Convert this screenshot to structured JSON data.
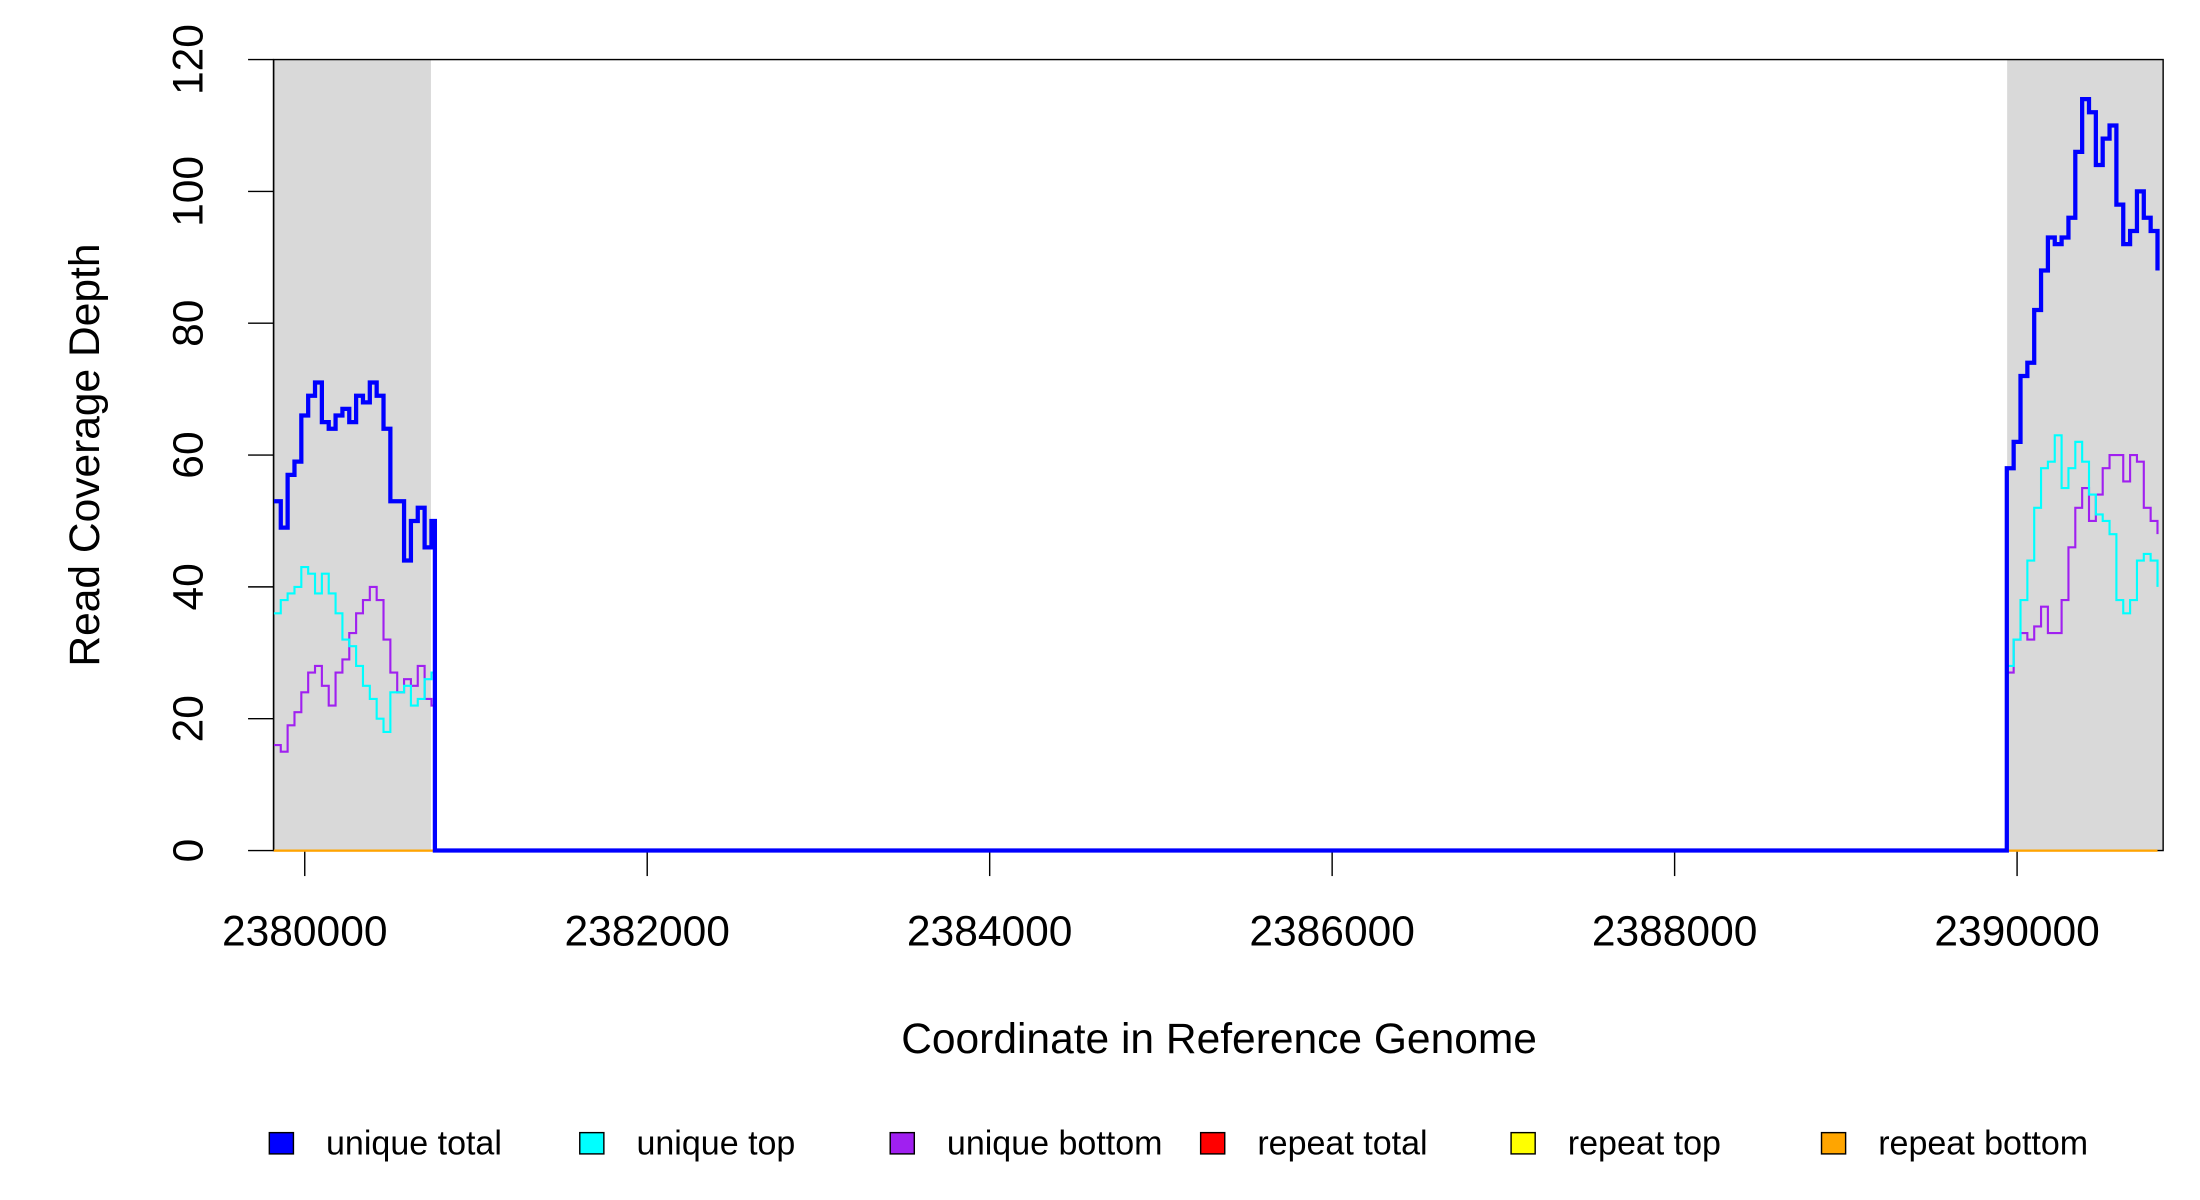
{
  "chart_data": {
    "type": "line",
    "title_x": "Coordinate in Reference Genome",
    "title_y": "Read Coverage Depth",
    "xlim": [
      2379818,
      2390853
    ],
    "ylim": [
      0,
      120
    ],
    "xticks": [
      2380000,
      2382000,
      2384000,
      2386000,
      2388000,
      2390000
    ],
    "yticks": [
      0,
      20,
      40,
      60,
      80,
      100,
      120
    ],
    "highlight_regions": [
      [
        2379818,
        2380737
      ],
      [
        2389942,
        2390853
      ]
    ],
    "highlight_color": "#d9d9d9",
    "x": [
      2379820,
      2379860,
      2379900,
      2379940,
      2379980,
      2380020,
      2380060,
      2380100,
      2380140,
      2380180,
      2380220,
      2380260,
      2380300,
      2380340,
      2380380,
      2380420,
      2380460,
      2380500,
      2380540,
      2380580,
      2380620,
      2380660,
      2380700,
      2380740,
      2380760,
      2389920,
      2389940,
      2389980,
      2390020,
      2390060,
      2390100,
      2390140,
      2390180,
      2390220,
      2390260,
      2390300,
      2390340,
      2390380,
      2390420,
      2390460,
      2390500,
      2390540,
      2390580,
      2390620,
      2390660,
      2390700,
      2390740,
      2390780,
      2390820
    ],
    "series": [
      {
        "name": "unique total",
        "color": "#0000ff",
        "width": 3,
        "values": [
          53,
          49,
          57,
          59,
          66,
          69,
          71,
          65,
          64,
          66,
          67,
          65,
          69,
          68,
          71,
          69,
          64,
          53,
          53,
          44,
          50,
          52,
          46,
          50,
          0,
          0,
          58,
          62,
          72,
          74,
          82,
          88,
          93,
          92,
          93,
          96,
          106,
          114,
          112,
          104,
          108,
          110,
          98,
          92,
          94,
          100,
          96,
          94,
          88
        ]
      },
      {
        "name": "unique top",
        "color": "#00ffff",
        "width": 1.5,
        "values": [
          36,
          38,
          39,
          40,
          43,
          42,
          39,
          42,
          39,
          36,
          32,
          31,
          28,
          25,
          23,
          20,
          18,
          24,
          24,
          25,
          22,
          23,
          26,
          27,
          0,
          0,
          28,
          32,
          38,
          44,
          52,
          58,
          59,
          63,
          55,
          58,
          62,
          59,
          54,
          51,
          50,
          48,
          38,
          36,
          38,
          44,
          45,
          44,
          40
        ]
      },
      {
        "name": "unique bottom",
        "color": "#a020f0",
        "width": 1.5,
        "values": [
          16,
          15,
          19,
          21,
          24,
          27,
          28,
          25,
          22,
          27,
          29,
          33,
          36,
          38,
          40,
          38,
          32,
          27,
          24,
          26,
          25,
          28,
          23,
          22,
          0,
          0,
          27,
          32,
          33,
          32,
          34,
          37,
          33,
          33,
          38,
          46,
          52,
          55,
          50,
          54,
          58,
          60,
          60,
          56,
          60,
          59,
          52,
          50,
          48
        ]
      },
      {
        "name": "repeat total",
        "color": "#ff0000",
        "width": 1.5,
        "values": [
          0,
          0,
          0,
          0,
          0,
          0,
          0,
          0,
          0,
          0,
          0,
          0,
          0,
          0,
          0,
          0,
          0,
          0,
          0,
          0,
          0,
          0,
          0,
          0,
          0,
          0,
          0,
          0,
          0,
          0,
          0,
          0,
          0,
          0,
          0,
          0,
          0,
          0,
          0,
          0,
          0,
          0,
          0,
          0,
          0,
          0,
          0,
          0,
          0
        ]
      },
      {
        "name": "repeat top",
        "color": "#ffff00",
        "width": 1.5,
        "values": [
          0,
          0,
          0,
          0,
          0,
          0,
          0,
          0,
          0,
          0,
          0,
          0,
          0,
          0,
          0,
          0,
          0,
          0,
          0,
          0,
          0,
          0,
          0,
          0,
          0,
          0,
          0,
          0,
          0,
          0,
          0,
          0,
          0,
          0,
          0,
          0,
          0,
          0,
          0,
          0,
          0,
          0,
          0,
          0,
          0,
          0,
          0,
          0,
          0
        ]
      },
      {
        "name": "repeat bottom",
        "color": "#ffa500",
        "width": 1.5,
        "values": [
          0,
          0,
          0,
          0,
          0,
          0,
          0,
          0,
          0,
          0,
          0,
          0,
          0,
          0,
          0,
          0,
          0,
          0,
          0,
          0,
          0,
          0,
          0,
          0,
          0,
          0,
          0,
          0,
          0,
          0,
          0,
          0,
          0,
          0,
          0,
          0,
          0,
          0,
          0,
          0,
          0,
          0,
          0,
          0,
          0,
          0,
          0,
          0,
          0
        ]
      }
    ]
  }
}
